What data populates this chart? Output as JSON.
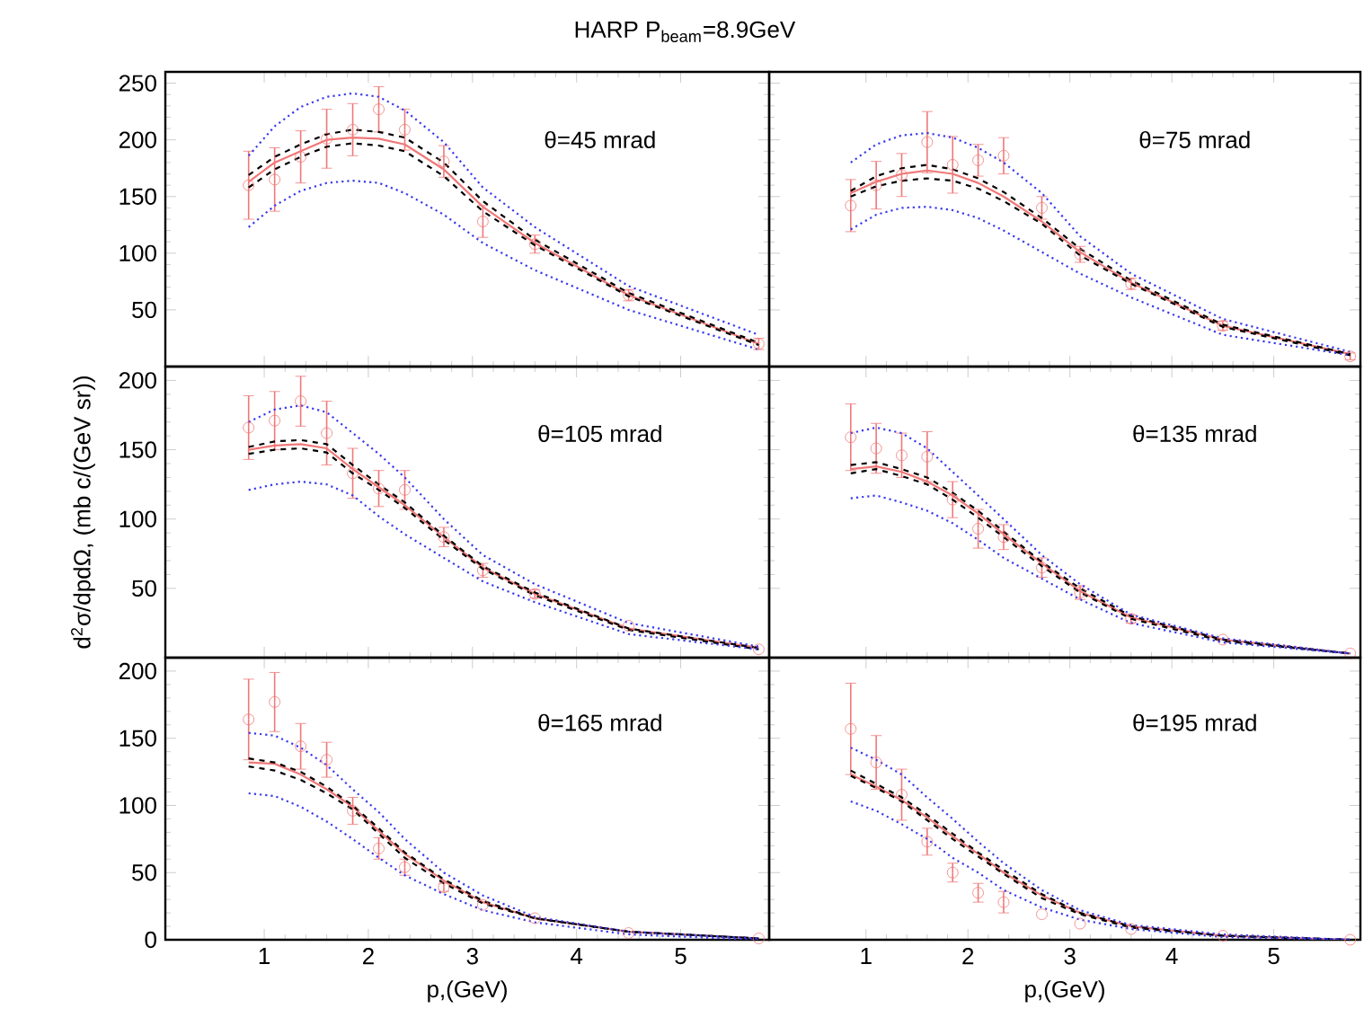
{
  "chart_data": [
    {
      "type": "scatter",
      "title": "HARP P$_{beam}$=8.9GeV",
      "x": [
        0.85,
        1.1,
        1.35,
        1.6,
        1.85,
        2.1,
        2.35,
        2.725,
        3.1,
        3.6,
        4.5,
        5.75
      ],
      "xlim": [
        0.05,
        5.85
      ],
      "xticks": [
        1,
        2,
        3,
        4,
        5
      ],
      "ylim": [
        0,
        260
      ],
      "yticks": [
        50,
        100,
        150,
        200,
        250
      ],
      "tick_labels": "y",
      "annotations": [
        "θ=45 mrad"
      ],
      "series": [
        {
          "color": "#f07878",
          "marker": "circle",
          "values": [
            160,
            165,
            185,
            201,
            209,
            227,
            209,
            181,
            128,
            108,
            63,
            20
          ],
          "errors": [
            30,
            28,
            23,
            26,
            23,
            20,
            18,
            14,
            14,
            8,
            5,
            5
          ]
        },
        {
          "type": "line",
          "color": "#f07878",
          "line_style": "solid",
          "values": [
            163,
            180,
            190,
            200,
            202,
            201,
            196,
            174,
            141,
            109,
            63,
            20
          ]
        },
        {
          "type": "line",
          "color": "#000000",
          "line_style": "dashed",
          "values": [
            169,
            185,
            196,
            205,
            209,
            207,
            202,
            180,
            146,
            112,
            65,
            21
          ]
        },
        {
          "type": "line",
          "color": "#000000",
          "line_style": "dashed",
          "values": [
            158,
            174,
            185,
            194,
            197,
            195,
            190,
            168,
            137,
            107,
            62,
            19
          ]
        },
        {
          "type": "line",
          "color": "#3a3aee",
          "line_style": "dotted",
          "values": [
            186,
            212,
            229,
            238,
            241,
            238,
            226,
            198,
            158,
            123,
            71,
            28
          ]
        },
        {
          "type": "line",
          "color": "#3a3aee",
          "line_style": "dotted",
          "values": [
            123,
            142,
            155,
            162,
            164,
            162,
            153,
            134,
            109,
            85,
            50,
            15
          ]
        }
      ]
    },
    {
      "type": "scatter",
      "x": [
        0.85,
        1.1,
        1.35,
        1.6,
        1.85,
        2.1,
        2.35,
        2.725,
        3.1,
        3.6,
        4.5,
        5.75
      ],
      "xlim": [
        0.05,
        5.85
      ],
      "xticks": [
        1,
        2,
        3,
        4,
        5
      ],
      "ylim": [
        0,
        260
      ],
      "yticks": [
        50,
        100,
        150,
        200,
        250
      ],
      "tick_labels": false,
      "annotations": [
        "θ=75 mrad"
      ],
      "series": [
        {
          "color": "#f07878",
          "marker": "circle",
          "values": [
            142,
            160,
            169,
            198,
            178,
            182,
            186,
            140,
            99,
            73,
            36,
            9
          ],
          "errors": [
            23,
            21,
            19,
            27,
            25,
            14,
            16,
            10,
            7,
            5,
            4,
            3
          ]
        },
        {
          "type": "line",
          "color": "#f07878",
          "line_style": "solid",
          "values": [
            153,
            163,
            170,
            173,
            170,
            162,
            150,
            128,
            101,
            74,
            36,
            11
          ]
        },
        {
          "type": "line",
          "color": "#000000",
          "line_style": "dashed",
          "values": [
            155,
            168,
            175,
            178,
            174,
            166,
            154,
            131,
            104,
            76,
            37,
            11
          ]
        },
        {
          "type": "line",
          "color": "#000000",
          "line_style": "dashed",
          "values": [
            150,
            159,
            164,
            166,
            164,
            157,
            146,
            126,
            98,
            73,
            35,
            10
          ]
        },
        {
          "type": "line",
          "color": "#3a3aee",
          "line_style": "dotted",
          "values": [
            180,
            196,
            204,
            206,
            202,
            193,
            180,
            153,
            115,
            82,
            42,
            13
          ]
        },
        {
          "type": "line",
          "color": "#3a3aee",
          "line_style": "dotted",
          "values": [
            121,
            134,
            140,
            141,
            138,
            131,
            120,
            101,
            82,
            61,
            28,
            10
          ]
        }
      ]
    },
    {
      "type": "scatter",
      "ylabel": "d$^{2}$σ/dpdΩ, (mb c/(GeV sr))",
      "x": [
        0.85,
        1.1,
        1.35,
        1.6,
        1.85,
        2.1,
        2.35,
        2.725,
        3.1,
        3.6,
        4.5,
        5.75
      ],
      "xlim": [
        0.05,
        5.85
      ],
      "xticks": [
        1,
        2,
        3,
        4,
        5
      ],
      "ylim": [
        0,
        210
      ],
      "yticks": [
        50,
        100,
        150,
        200
      ],
      "tick_labels": "y",
      "annotations": [
        "θ=105 mrad"
      ],
      "series": [
        {
          "color": "#f07878",
          "marker": "circle",
          "values": [
            166,
            171,
            185,
            162,
            133,
            122,
            121,
            87,
            63,
            46,
            23,
            6
          ],
          "errors": [
            23,
            21,
            18,
            23,
            18,
            13,
            14,
            7,
            5,
            3,
            null,
            null
          ]
        },
        {
          "type": "line",
          "color": "#f07878",
          "line_style": "solid",
          "values": [
            150,
            153,
            154,
            151,
            136,
            123,
            110,
            87,
            65,
            46,
            21,
            7
          ]
        },
        {
          "type": "line",
          "color": "#000000",
          "line_style": "dashed",
          "values": [
            152,
            156,
            157,
            154,
            139,
            125,
            112,
            88,
            66,
            47,
            21,
            7
          ]
        },
        {
          "type": "line",
          "color": "#000000",
          "line_style": "dashed",
          "values": [
            147,
            150,
            151,
            148,
            133,
            121,
            108,
            85,
            64,
            45,
            20,
            6
          ]
        },
        {
          "type": "line",
          "color": "#3a3aee",
          "line_style": "dotted",
          "values": [
            170,
            179,
            182,
            177,
            162,
            147,
            130,
            100,
            74,
            53,
            25,
            8
          ]
        },
        {
          "type": "line",
          "color": "#3a3aee",
          "line_style": "dotted",
          "values": [
            121,
            125,
            127,
            125,
            117,
            102,
            89,
            72,
            55,
            40,
            17,
            6
          ]
        }
      ]
    },
    {
      "type": "scatter",
      "x": [
        0.85,
        1.1,
        1.35,
        1.6,
        1.85,
        2.1,
        2.35,
        2.725,
        3.1,
        3.6,
        4.5,
        5.75
      ],
      "xlim": [
        0.05,
        5.85
      ],
      "xticks": [
        1,
        2,
        3,
        4,
        5
      ],
      "ylim": [
        0,
        210
      ],
      "yticks": [
        50,
        100,
        150,
        200
      ],
      "tick_labels": false,
      "annotations": [
        "θ=135 mrad"
      ],
      "series": [
        {
          "color": "#f07878",
          "marker": "circle",
          "values": [
            159,
            151,
            146,
            145,
            114,
            93,
            87,
            65,
            47,
            28,
            13,
            3
          ],
          "errors": [
            24,
            18,
            16,
            18,
            13,
            14,
            9,
            7,
            5,
            3,
            null,
            null
          ]
        },
        {
          "type": "line",
          "color": "#f07878",
          "line_style": "solid",
          "values": [
            136,
            138,
            134,
            127,
            117,
            104,
            89,
            68,
            48,
            29,
            13,
            3
          ]
        },
        {
          "type": "line",
          "color": "#000000",
          "line_style": "dashed",
          "values": [
            139,
            141,
            136,
            130,
            119,
            106,
            91,
            69,
            50,
            30,
            13,
            3
          ]
        },
        {
          "type": "line",
          "color": "#000000",
          "line_style": "dashed",
          "values": [
            133,
            136,
            131,
            125,
            114,
            101,
            87,
            66,
            47,
            28,
            12,
            3
          ]
        },
        {
          "type": "line",
          "color": "#3a3aee",
          "line_style": "dotted",
          "values": [
            162,
            166,
            162,
            151,
            134,
            117,
            100,
            74,
            53,
            31,
            14,
            3
          ]
        },
        {
          "type": "line",
          "color": "#3a3aee",
          "line_style": "dotted",
          "values": [
            115,
            117,
            112,
            106,
            97,
            85,
            72,
            57,
            42,
            25,
            11,
            3
          ]
        }
      ]
    },
    {
      "type": "scatter",
      "xlabel": "p,(GeV)",
      "x": [
        0.85,
        1.1,
        1.35,
        1.6,
        1.85,
        2.1,
        2.35,
        2.725,
        3.1,
        3.6,
        4.5,
        5.75
      ],
      "xlim": [
        0.05,
        5.85
      ],
      "xticks": [
        1,
        2,
        3,
        4,
        5
      ],
      "ylim": [
        0,
        210
      ],
      "yticks": [
        0,
        50,
        100,
        150,
        200
      ],
      "annotations": [
        "θ=165 mrad"
      ],
      "series": [
        {
          "color": "#f07878",
          "marker": "circle",
          "values": [
            164,
            177,
            144,
            134,
            96,
            68,
            54,
            39,
            26,
            16,
            5,
            1
          ],
          "errors": [
            30,
            22,
            17,
            13,
            10,
            8,
            6,
            3,
            null,
            null,
            null,
            null
          ]
        },
        {
          "type": "line",
          "color": "#f07878",
          "line_style": "solid",
          "values": [
            132,
            131,
            123,
            112,
            99,
            81,
            64,
            44,
            28,
            16,
            6,
            1
          ]
        },
        {
          "type": "line",
          "color": "#000000",
          "line_style": "dashed",
          "values": [
            135,
            132,
            125,
            114,
            100,
            83,
            65,
            45,
            29,
            16,
            6,
            1
          ]
        },
        {
          "type": "line",
          "color": "#000000",
          "line_style": "dashed",
          "values": [
            129,
            126,
            119,
            109,
            97,
            79,
            61,
            42,
            27,
            16,
            6,
            1
          ]
        },
        {
          "type": "line",
          "color": "#3a3aee",
          "line_style": "dotted",
          "values": [
            154,
            152,
            143,
            130,
            112,
            95,
            75,
            50,
            33,
            17,
            6,
            1
          ]
        },
        {
          "type": "line",
          "color": "#3a3aee",
          "line_style": "dotted",
          "values": [
            109,
            107,
            99,
            88,
            75,
            61,
            48,
            34,
            22,
            13,
            4,
            0
          ]
        }
      ]
    },
    {
      "type": "scatter",
      "xlabel": "p,(GeV)",
      "x": [
        0.85,
        1.1,
        1.35,
        1.6,
        1.85,
        2.1,
        2.35,
        2.725,
        3.1,
        3.6,
        4.5,
        5.75
      ],
      "xlim": [
        0.05,
        5.85
      ],
      "xticks": [
        1,
        2,
        3,
        4,
        5
      ],
      "ylim": [
        0,
        210
      ],
      "yticks": [
        0,
        50,
        100,
        150,
        200
      ],
      "tick_labels": "x",
      "annotations": [
        "θ=195 mrad"
      ],
      "series": [
        {
          "color": "#f07878",
          "marker": "circle",
          "values": [
            157,
            132,
            108,
            73,
            50,
            35,
            28,
            19,
            12,
            8,
            3,
            0
          ],
          "errors": [
            34,
            20,
            19,
            10,
            7,
            7,
            8,
            null,
            null,
            null,
            null,
            null
          ]
        },
        {
          "type": "line",
          "color": "#f07878",
          "line_style": "solid",
          "values": [
            123,
            114,
            104,
            91,
            77,
            64,
            50,
            33,
            20,
            10,
            3,
            0
          ]
        },
        {
          "type": "line",
          "color": "#000000",
          "line_style": "dashed",
          "values": [
            126,
            116,
            106,
            93,
            79,
            65,
            52,
            34,
            20,
            10,
            3,
            0
          ]
        },
        {
          "type": "line",
          "color": "#000000",
          "line_style": "dashed",
          "values": [
            122,
            113,
            103,
            89,
            75,
            62,
            49,
            31,
            19,
            9,
            3,
            0
          ]
        },
        {
          "type": "line",
          "color": "#3a3aee",
          "line_style": "dotted",
          "values": [
            143,
            134,
            123,
            106,
            90,
            73,
            57,
            37,
            22,
            11,
            4,
            0
          ]
        },
        {
          "type": "line",
          "color": "#3a3aee",
          "line_style": "dotted",
          "values": [
            103,
            96,
            86,
            75,
            61,
            50,
            37,
            24,
            15,
            8,
            2,
            0
          ]
        }
      ]
    }
  ]
}
